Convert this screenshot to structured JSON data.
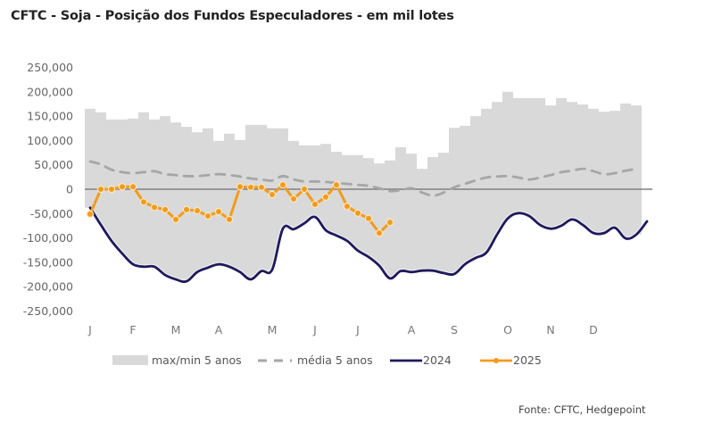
{
  "chart_data": {
    "type": "line",
    "title": "CFTC - Soja - Posição dos Fundos Especuladores - em mil lotes",
    "source": "Fonte: CFTC, Hedgepoint",
    "xlabel": "",
    "ylabel": "",
    "ylim": [
      -250000,
      250000
    ],
    "y_ticks": [
      250000,
      200000,
      150000,
      100000,
      50000,
      0,
      -50000,
      -100000,
      -150000,
      -200000,
      -250000
    ],
    "y_tick_labels": [
      "250,000",
      "200,000",
      "150,000",
      "100,000",
      "50,000",
      "0",
      "-50,000",
      "-100,000",
      "-150,000",
      "-200,000",
      "-250,000"
    ],
    "x_unit": "week of year",
    "x_range": [
      1,
      53
    ],
    "month_labels": [
      {
        "label": "J",
        "week": 1
      },
      {
        "label": "F",
        "week": 5
      },
      {
        "label": "M",
        "week": 9
      },
      {
        "label": "A",
        "week": 13
      },
      {
        "label": "M",
        "week": 18
      },
      {
        "label": "J",
        "week": 22
      },
      {
        "label": "J",
        "week": 26
      },
      {
        "label": "A",
        "week": 31
      },
      {
        "label": "S",
        "week": 35
      },
      {
        "label": "O",
        "week": 40
      },
      {
        "label": "N",
        "week": 44
      },
      {
        "label": "D",
        "week": 48
      }
    ],
    "grid": false,
    "zero_line": true,
    "legend_position": "bottom",
    "legend": [
      {
        "key": "range",
        "label": "max/min 5 anos"
      },
      {
        "key": "mean",
        "label": "média 5 anos"
      },
      {
        "key": "y2024",
        "label": "2024"
      },
      {
        "key": "y2025",
        "label": "2025"
      }
    ],
    "colors": {
      "range": "#d9d9d9",
      "mean": "#a6a6a6",
      "y2024": "#1f1a5c",
      "y2025": "#f29b1c",
      "zero_line": "#808080"
    },
    "series": [
      {
        "key": "range",
        "name": "max/min 5 anos",
        "kind": "band",
        "max": [
          165000,
          158000,
          143000,
          143000,
          145000,
          158000,
          143000,
          150000,
          137000,
          128000,
          117000,
          125000,
          99000,
          114000,
          101000,
          132000,
          132000,
          125000,
          125000,
          99000,
          90000,
          90000,
          93000,
          77000,
          70000,
          70000,
          64000,
          53000,
          59000,
          86000,
          73000,
          42000,
          66000,
          75000,
          126000,
          130000,
          150000,
          165000,
          179000,
          200000,
          187000,
          187000,
          187000,
          172000,
          187000,
          179000,
          174000,
          165000,
          159000,
          161000,
          176000,
          172000
        ],
        "min": [
          -38000,
          -73000,
          -106000,
          -132000,
          -154000,
          -159000,
          -159000,
          -176000,
          -185000,
          -189000,
          -170000,
          -161000,
          -154000,
          -159000,
          -170000,
          -185000,
          -168000,
          -165000,
          -81000,
          -82000,
          -70000,
          -57000,
          -84000,
          -95000,
          -106000,
          -126000,
          -139000,
          -157000,
          -183000,
          -168000,
          -170000,
          -167000,
          -167000,
          -172000,
          -174000,
          -154000,
          -141000,
          -130000,
          -93000,
          -60000,
          -49000,
          -55000,
          -73000,
          -81000,
          -75000,
          -62000,
          -73000,
          -90000,
          -90000,
          -79000,
          -101000,
          -93000
        ]
      },
      {
        "key": "mean",
        "name": "média 5 anos",
        "kind": "dashed-line",
        "values": [
          57000,
          51000,
          40000,
          35000,
          33000,
          35000,
          37000,
          31000,
          29000,
          27000,
          27000,
          29000,
          31000,
          29000,
          26000,
          22000,
          20000,
          18000,
          27000,
          20000,
          16000,
          16000,
          15000,
          13000,
          11000,
          9000,
          7000,
          2000,
          -4000,
          -2000,
          2000,
          -7000,
          -13000,
          -7000,
          4000,
          11000,
          18000,
          24000,
          26000,
          27000,
          24000,
          20000,
          24000,
          29000,
          35000,
          38000,
          42000,
          37000,
          31000,
          33000,
          38000,
          42000
        ]
      },
      {
        "key": "y2024",
        "name": "2024",
        "kind": "line",
        "values": [
          -38000,
          -73000,
          -106000,
          -132000,
          -154000,
          -159000,
          -159000,
          -176000,
          -185000,
          -189000,
          -170000,
          -161000,
          -154000,
          -159000,
          -170000,
          -185000,
          -168000,
          -165000,
          -81000,
          -82000,
          -70000,
          -57000,
          -84000,
          -95000,
          -106000,
          -126000,
          -139000,
          -157000,
          -183000,
          -168000,
          -170000,
          -167000,
          -167000,
          -172000,
          -174000,
          -154000,
          -141000,
          -130000,
          -93000,
          -60000,
          -49000,
          -55000,
          -73000,
          -81000,
          -75000,
          -62000,
          -73000,
          -90000,
          -90000,
          -79000,
          -101000,
          -93000,
          -66000
        ]
      },
      {
        "key": "y2025",
        "name": "2025",
        "kind": "line-markers",
        "values": [
          -51000,
          0,
          0,
          5000,
          5000,
          -26000,
          -37000,
          -42000,
          -62000,
          -42000,
          -44000,
          -55000,
          -46000,
          -62000,
          5000,
          4000,
          4000,
          -11000,
          9000,
          -20000,
          0,
          -31000,
          -16000,
          9000,
          -35000,
          -49000,
          -60000,
          -90000,
          -68000
        ]
      }
    ]
  }
}
